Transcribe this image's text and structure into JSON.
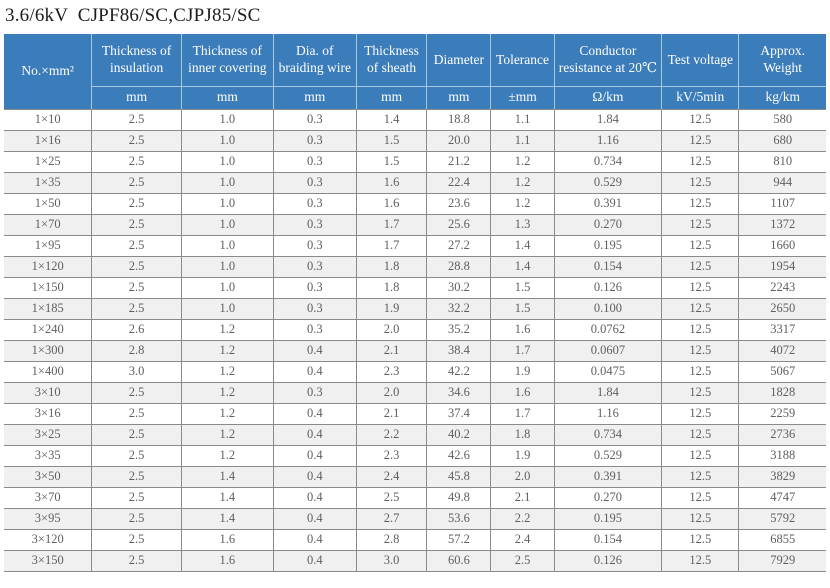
{
  "title": "3.6/6kV  CJPF86/SC,CJPJ85/SC",
  "colors": {
    "header_bg": "#3b7cbb",
    "header_text": "#ffffff",
    "header_line": "#a9c7e2",
    "row_alt_bg": "#f0f0f0",
    "border": "#8a8a8a",
    "body_text": "#5f5f5f",
    "title_text": "#1c1c1c"
  },
  "table": {
    "columns": [
      {
        "label": "No.×mm²",
        "unit": ""
      },
      {
        "label": "Thickness of insulation",
        "unit": "mm"
      },
      {
        "label": "Thickness of inner covering",
        "unit": "mm"
      },
      {
        "label": "Dia. of braiding wire",
        "unit": "mm"
      },
      {
        "label": "Thickness of sheath",
        "unit": "mm"
      },
      {
        "label": "Diameter",
        "unit": "mm"
      },
      {
        "label": "Tolerance",
        "unit": "±mm"
      },
      {
        "label": "Conductor resistance at 20℃",
        "unit": "Ω/km"
      },
      {
        "label": "Test voltage",
        "unit": "kV/5min"
      },
      {
        "label": "Approx. Weight",
        "unit": "kg/km"
      }
    ],
    "rows": [
      [
        "1×10",
        "2.5",
        "1.0",
        "0.3",
        "1.4",
        "18.8",
        "1.1",
        "1.84",
        "12.5",
        "580"
      ],
      [
        "1×16",
        "2.5",
        "1.0",
        "0.3",
        "1.5",
        "20.0",
        "1.1",
        "1.16",
        "12.5",
        "680"
      ],
      [
        "1×25",
        "2.5",
        "1.0",
        "0.3",
        "1.5",
        "21.2",
        "1.2",
        "0.734",
        "12.5",
        "810"
      ],
      [
        "1×35",
        "2.5",
        "1.0",
        "0.3",
        "1.6",
        "22.4",
        "1.2",
        "0.529",
        "12.5",
        "944"
      ],
      [
        "1×50",
        "2.5",
        "1.0",
        "0.3",
        "1.6",
        "23.6",
        "1.2",
        "0.391",
        "12.5",
        "1107"
      ],
      [
        "1×70",
        "2.5",
        "1.0",
        "0.3",
        "1.7",
        "25.6",
        "1.3",
        "0.270",
        "12.5",
        "1372"
      ],
      [
        "1×95",
        "2.5",
        "1.0",
        "0.3",
        "1.7",
        "27.2",
        "1.4",
        "0.195",
        "12.5",
        "1660"
      ],
      [
        "1×120",
        "2.5",
        "1.0",
        "0.3",
        "1.8",
        "28.8",
        "1.4",
        "0.154",
        "12.5",
        "1954"
      ],
      [
        "1×150",
        "2.5",
        "1.0",
        "0.3",
        "1.8",
        "30.2",
        "1.5",
        "0.126",
        "12.5",
        "2243"
      ],
      [
        "1×185",
        "2.5",
        "1.0",
        "0.3",
        "1.9",
        "32.2",
        "1.5",
        "0.100",
        "12.5",
        "2650"
      ],
      [
        "1×240",
        "2.6",
        "1.2",
        "0.3",
        "2.0",
        "35.2",
        "1.6",
        "0.0762",
        "12.5",
        "3317"
      ],
      [
        "1×300",
        "2.8",
        "1.2",
        "0.4",
        "2.1",
        "38.4",
        "1.7",
        "0.0607",
        "12.5",
        "4072"
      ],
      [
        "1×400",
        "3.0",
        "1.2",
        "0.4",
        "2.3",
        "42.2",
        "1.9",
        "0.0475",
        "12.5",
        "5067"
      ],
      [
        "3×10",
        "2.5",
        "1.2",
        "0.3",
        "2.0",
        "34.6",
        "1.6",
        "1.84",
        "12.5",
        "1828"
      ],
      [
        "3×16",
        "2.5",
        "1.2",
        "0.4",
        "2.1",
        "37.4",
        "1.7",
        "1.16",
        "12.5",
        "2259"
      ],
      [
        "3×25",
        "2.5",
        "1.2",
        "0.4",
        "2.2",
        "40.2",
        "1.8",
        "0.734",
        "12.5",
        "2736"
      ],
      [
        "3×35",
        "2.5",
        "1.2",
        "0.4",
        "2.3",
        "42.6",
        "1.9",
        "0.529",
        "12.5",
        "3188"
      ],
      [
        "3×50",
        "2.5",
        "1.4",
        "0.4",
        "2.4",
        "45.8",
        "2.0",
        "0.391",
        "12.5",
        "3829"
      ],
      [
        "3×70",
        "2.5",
        "1.4",
        "0.4",
        "2.5",
        "49.8",
        "2.1",
        "0.270",
        "12.5",
        "4747"
      ],
      [
        "3×95",
        "2.5",
        "1.4",
        "0.4",
        "2.7",
        "53.6",
        "2.2",
        "0.195",
        "12.5",
        "5792"
      ],
      [
        "3×120",
        "2.5",
        "1.6",
        "0.4",
        "2.8",
        "57.2",
        "2.4",
        "0.154",
        "12.5",
        "6855"
      ],
      [
        "3×150",
        "2.5",
        "1.6",
        "0.4",
        "3.0",
        "60.6",
        "2.5",
        "0.126",
        "12.5",
        "7929"
      ]
    ]
  }
}
